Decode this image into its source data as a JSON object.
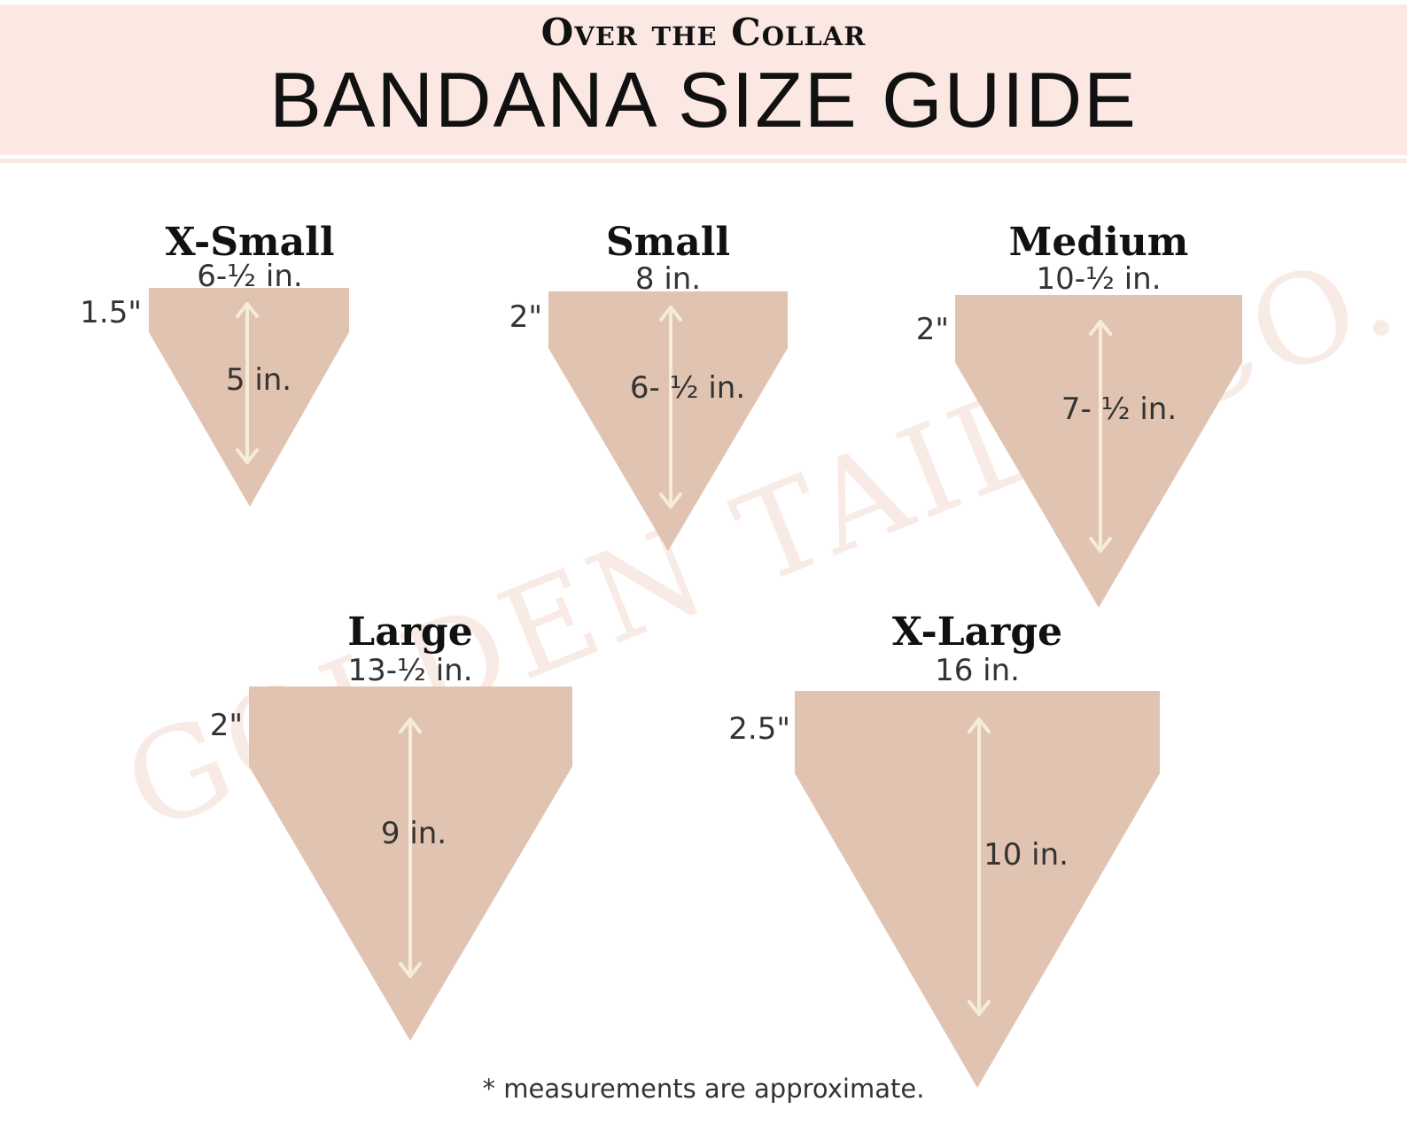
{
  "header": {
    "subtitle": "Over the Collar",
    "title": "BANDANA SIZE GUIDE"
  },
  "watermark": "GOLDEN TAILS CO.",
  "colors": {
    "header_bg": "#fce8e3",
    "bandana_fill": "#e0c3b0",
    "arrow": "#f5ecdc",
    "watermark": "#f8ebe5"
  },
  "sizes": [
    {
      "name": "X-Small",
      "width": "6-½ in.",
      "side": "1.5\"",
      "length": "5 in."
    },
    {
      "name": "Small",
      "width": "8 in.",
      "side": "2\"",
      "length": "6- ½ in."
    },
    {
      "name": "Medium",
      "width": "10-½ in.",
      "side": "2\"",
      "length": "7- ½ in."
    },
    {
      "name": "Large",
      "width": "13-½ in.",
      "side": "2\"",
      "length": "9 in."
    },
    {
      "name": "X-Large",
      "width": "16 in.",
      "side": "2.5\"",
      "length": "10 in."
    }
  ],
  "footnote": "* measurements are approximate."
}
